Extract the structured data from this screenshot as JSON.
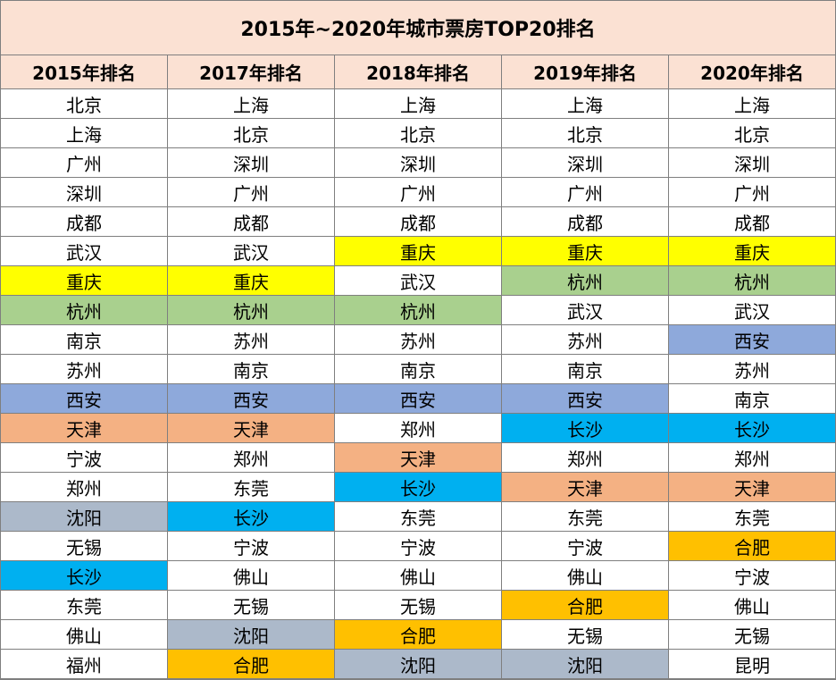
{
  "title": "2015年~2020年城市票房TOP20排名",
  "headers": [
    "2015年排名",
    "2017年排名",
    "2018年排名",
    "2019年排名",
    "2020年排名"
  ],
  "palette": {
    "none": "#ffffff",
    "yellow": "#ffff00",
    "green": "#a9d08e",
    "blue": "#8ea9db",
    "peach": "#f4b183",
    "cyan": "#00b0f0",
    "gray": "#acb9ca",
    "orange": "#ffc000"
  },
  "rows": [
    [
      {
        "text": "北京",
        "fill": "none"
      },
      {
        "text": "上海",
        "fill": "none"
      },
      {
        "text": "上海",
        "fill": "none"
      },
      {
        "text": "上海",
        "fill": "none"
      },
      {
        "text": "上海",
        "fill": "none"
      }
    ],
    [
      {
        "text": "上海",
        "fill": "none"
      },
      {
        "text": "北京",
        "fill": "none"
      },
      {
        "text": "北京",
        "fill": "none"
      },
      {
        "text": "北京",
        "fill": "none"
      },
      {
        "text": "北京",
        "fill": "none"
      }
    ],
    [
      {
        "text": "广州",
        "fill": "none"
      },
      {
        "text": "深圳",
        "fill": "none"
      },
      {
        "text": "深圳",
        "fill": "none"
      },
      {
        "text": "深圳",
        "fill": "none"
      },
      {
        "text": "深圳",
        "fill": "none"
      }
    ],
    [
      {
        "text": "深圳",
        "fill": "none"
      },
      {
        "text": "广州",
        "fill": "none"
      },
      {
        "text": "广州",
        "fill": "none"
      },
      {
        "text": "广州",
        "fill": "none"
      },
      {
        "text": "广州",
        "fill": "none"
      }
    ],
    [
      {
        "text": "成都",
        "fill": "none"
      },
      {
        "text": "成都",
        "fill": "none"
      },
      {
        "text": "成都",
        "fill": "none"
      },
      {
        "text": "成都",
        "fill": "none"
      },
      {
        "text": "成都",
        "fill": "none"
      }
    ],
    [
      {
        "text": "武汉",
        "fill": "none"
      },
      {
        "text": "武汉",
        "fill": "none"
      },
      {
        "text": "重庆",
        "fill": "yellow"
      },
      {
        "text": "重庆",
        "fill": "yellow"
      },
      {
        "text": "重庆",
        "fill": "yellow"
      }
    ],
    [
      {
        "text": "重庆",
        "fill": "yellow"
      },
      {
        "text": "重庆",
        "fill": "yellow"
      },
      {
        "text": "武汉",
        "fill": "none"
      },
      {
        "text": "杭州",
        "fill": "green"
      },
      {
        "text": "杭州",
        "fill": "green"
      }
    ],
    [
      {
        "text": "杭州",
        "fill": "green"
      },
      {
        "text": "杭州",
        "fill": "green"
      },
      {
        "text": "杭州",
        "fill": "green"
      },
      {
        "text": "武汉",
        "fill": "none"
      },
      {
        "text": "武汉",
        "fill": "none"
      }
    ],
    [
      {
        "text": "南京",
        "fill": "none"
      },
      {
        "text": "苏州",
        "fill": "none"
      },
      {
        "text": "苏州",
        "fill": "none"
      },
      {
        "text": "苏州",
        "fill": "none"
      },
      {
        "text": "西安",
        "fill": "blue"
      }
    ],
    [
      {
        "text": "苏州",
        "fill": "none"
      },
      {
        "text": "南京",
        "fill": "none"
      },
      {
        "text": "南京",
        "fill": "none"
      },
      {
        "text": "南京",
        "fill": "none"
      },
      {
        "text": "苏州",
        "fill": "none"
      }
    ],
    [
      {
        "text": "西安",
        "fill": "blue"
      },
      {
        "text": "西安",
        "fill": "blue"
      },
      {
        "text": "西安",
        "fill": "blue"
      },
      {
        "text": "西安",
        "fill": "blue"
      },
      {
        "text": "南京",
        "fill": "none"
      }
    ],
    [
      {
        "text": "天津",
        "fill": "peach"
      },
      {
        "text": "天津",
        "fill": "peach"
      },
      {
        "text": "郑州",
        "fill": "none"
      },
      {
        "text": "长沙",
        "fill": "cyan"
      },
      {
        "text": "长沙",
        "fill": "cyan"
      }
    ],
    [
      {
        "text": "宁波",
        "fill": "none"
      },
      {
        "text": "郑州",
        "fill": "none"
      },
      {
        "text": "天津",
        "fill": "peach"
      },
      {
        "text": "郑州",
        "fill": "none"
      },
      {
        "text": "郑州",
        "fill": "none"
      }
    ],
    [
      {
        "text": "郑州",
        "fill": "none"
      },
      {
        "text": "东莞",
        "fill": "none"
      },
      {
        "text": "长沙",
        "fill": "cyan"
      },
      {
        "text": "天津",
        "fill": "peach"
      },
      {
        "text": "天津",
        "fill": "peach"
      }
    ],
    [
      {
        "text": "沈阳",
        "fill": "gray"
      },
      {
        "text": "长沙",
        "fill": "cyan"
      },
      {
        "text": "东莞",
        "fill": "none"
      },
      {
        "text": "东莞",
        "fill": "none"
      },
      {
        "text": "东莞",
        "fill": "none"
      }
    ],
    [
      {
        "text": "无锡",
        "fill": "none"
      },
      {
        "text": "宁波",
        "fill": "none"
      },
      {
        "text": "宁波",
        "fill": "none"
      },
      {
        "text": "宁波",
        "fill": "none"
      },
      {
        "text": "合肥",
        "fill": "orange"
      }
    ],
    [
      {
        "text": "长沙",
        "fill": "cyan"
      },
      {
        "text": "佛山",
        "fill": "none"
      },
      {
        "text": "佛山",
        "fill": "none"
      },
      {
        "text": "佛山",
        "fill": "none"
      },
      {
        "text": "宁波",
        "fill": "none"
      }
    ],
    [
      {
        "text": "东莞",
        "fill": "none"
      },
      {
        "text": "无锡",
        "fill": "none"
      },
      {
        "text": "无锡",
        "fill": "none"
      },
      {
        "text": "合肥",
        "fill": "orange"
      },
      {
        "text": "佛山",
        "fill": "none"
      }
    ],
    [
      {
        "text": "佛山",
        "fill": "none"
      },
      {
        "text": "沈阳",
        "fill": "gray"
      },
      {
        "text": "合肥",
        "fill": "orange"
      },
      {
        "text": "无锡",
        "fill": "none"
      },
      {
        "text": "无锡",
        "fill": "none"
      }
    ],
    [
      {
        "text": "福州",
        "fill": "none"
      },
      {
        "text": "合肥",
        "fill": "orange"
      },
      {
        "text": "沈阳",
        "fill": "gray"
      },
      {
        "text": "沈阳",
        "fill": "gray"
      },
      {
        "text": "昆明",
        "fill": "none"
      }
    ]
  ]
}
